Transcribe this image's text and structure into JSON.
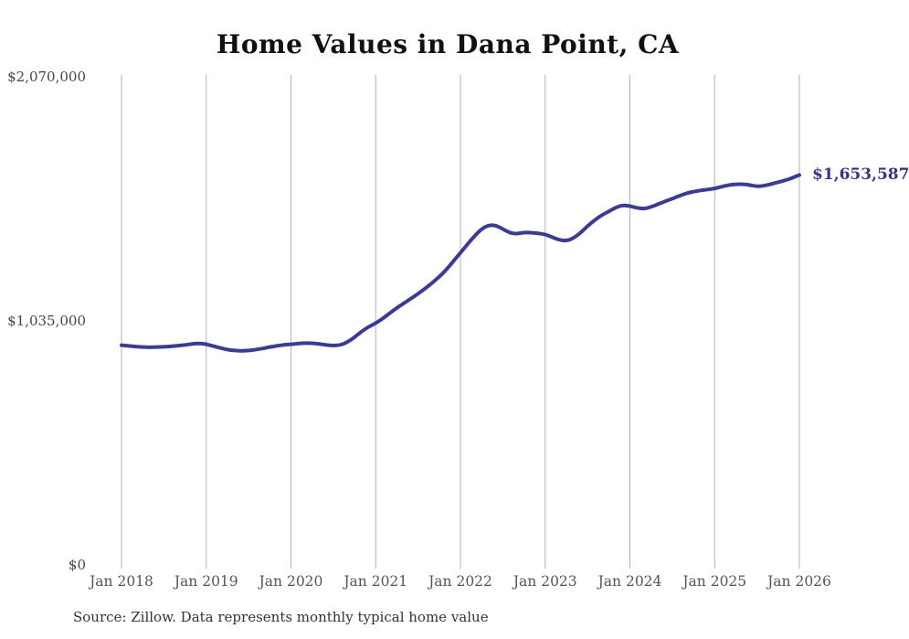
{
  "title": "Home Values in Dana Point, CA",
  "source_note": "Source: Zillow. Data represents monthly typical home value",
  "end_label": "$1,653,587",
  "colors": {
    "line": "#3a3a9c",
    "grid": "#b3b3b3",
    "x_axis_text": "#555555",
    "y_axis_text": "#444444",
    "title_text": "#111111",
    "end_label_text": "#34348f",
    "source_text": "#333333",
    "background": "#ffffff"
  },
  "y_axis": {
    "tick_labels": [
      "$0",
      "$1,035,000",
      "$2,070,000"
    ],
    "tick_values": [
      0,
      1035000,
      2070000
    ]
  },
  "x_axis": {
    "tick_labels": [
      "Jan 2018",
      "Jan 2019",
      "Jan 2020",
      "Jan 2021",
      "Jan 2022",
      "Jan 2023",
      "Jan 2024",
      "Jan 2025",
      "Jan 2026"
    ]
  },
  "chart_data": {
    "type": "line",
    "title": "Home Values in Dana Point, CA",
    "xlabel": "",
    "ylabel": "",
    "x_start": "2018-01",
    "x_end": "2026-01",
    "interval": "monthly",
    "ylim": [
      0,
      2070000
    ],
    "y_tick_values": [
      0,
      1035000,
      2070000
    ],
    "x_tick_labels": [
      "Jan 2018",
      "Jan 2019",
      "Jan 2020",
      "Jan 2021",
      "Jan 2022",
      "Jan 2023",
      "Jan 2024",
      "Jan 2025",
      "Jan 2026"
    ],
    "grid": "vertical-only",
    "legend_position": "none",
    "latest_value": 1653587,
    "latest_value_label": "$1,653,587",
    "series": [
      {
        "name": "Monthly typical home value",
        "values": [
          932000,
          929000,
          926000,
          924000,
          923000,
          924000,
          925000,
          927000,
          930000,
          933000,
          937000,
          940000,
          936000,
          928000,
          920000,
          913000,
          909000,
          908000,
          909000,
          913000,
          918000,
          924000,
          929000,
          933000,
          936000,
          939000,
          941000,
          940000,
          937000,
          933000,
          930000,
          932000,
          945000,
          965000,
          990000,
          1010000,
          1025000,
          1045000,
          1068000,
          1090000,
          1110000,
          1130000,
          1150000,
          1172000,
          1196000,
          1222000,
          1252000,
          1288000,
          1324000,
          1360000,
          1395000,
          1425000,
          1441000,
          1440000,
          1425000,
          1408000,
          1404000,
          1410000,
          1409000,
          1406000,
          1402000,
          1390000,
          1378000,
          1374000,
          1385000,
          1408000,
          1437000,
          1462000,
          1483000,
          1499000,
          1516000,
          1526000,
          1522000,
          1514000,
          1510000,
          1518000,
          1530000,
          1542000,
          1553000,
          1565000,
          1576000,
          1583000,
          1588000,
          1592000,
          1596000,
          1604000,
          1611000,
          1614000,
          1615000,
          1611000,
          1605000,
          1608000,
          1615000,
          1623000,
          1631000,
          1641000,
          1653587
        ]
      }
    ]
  }
}
